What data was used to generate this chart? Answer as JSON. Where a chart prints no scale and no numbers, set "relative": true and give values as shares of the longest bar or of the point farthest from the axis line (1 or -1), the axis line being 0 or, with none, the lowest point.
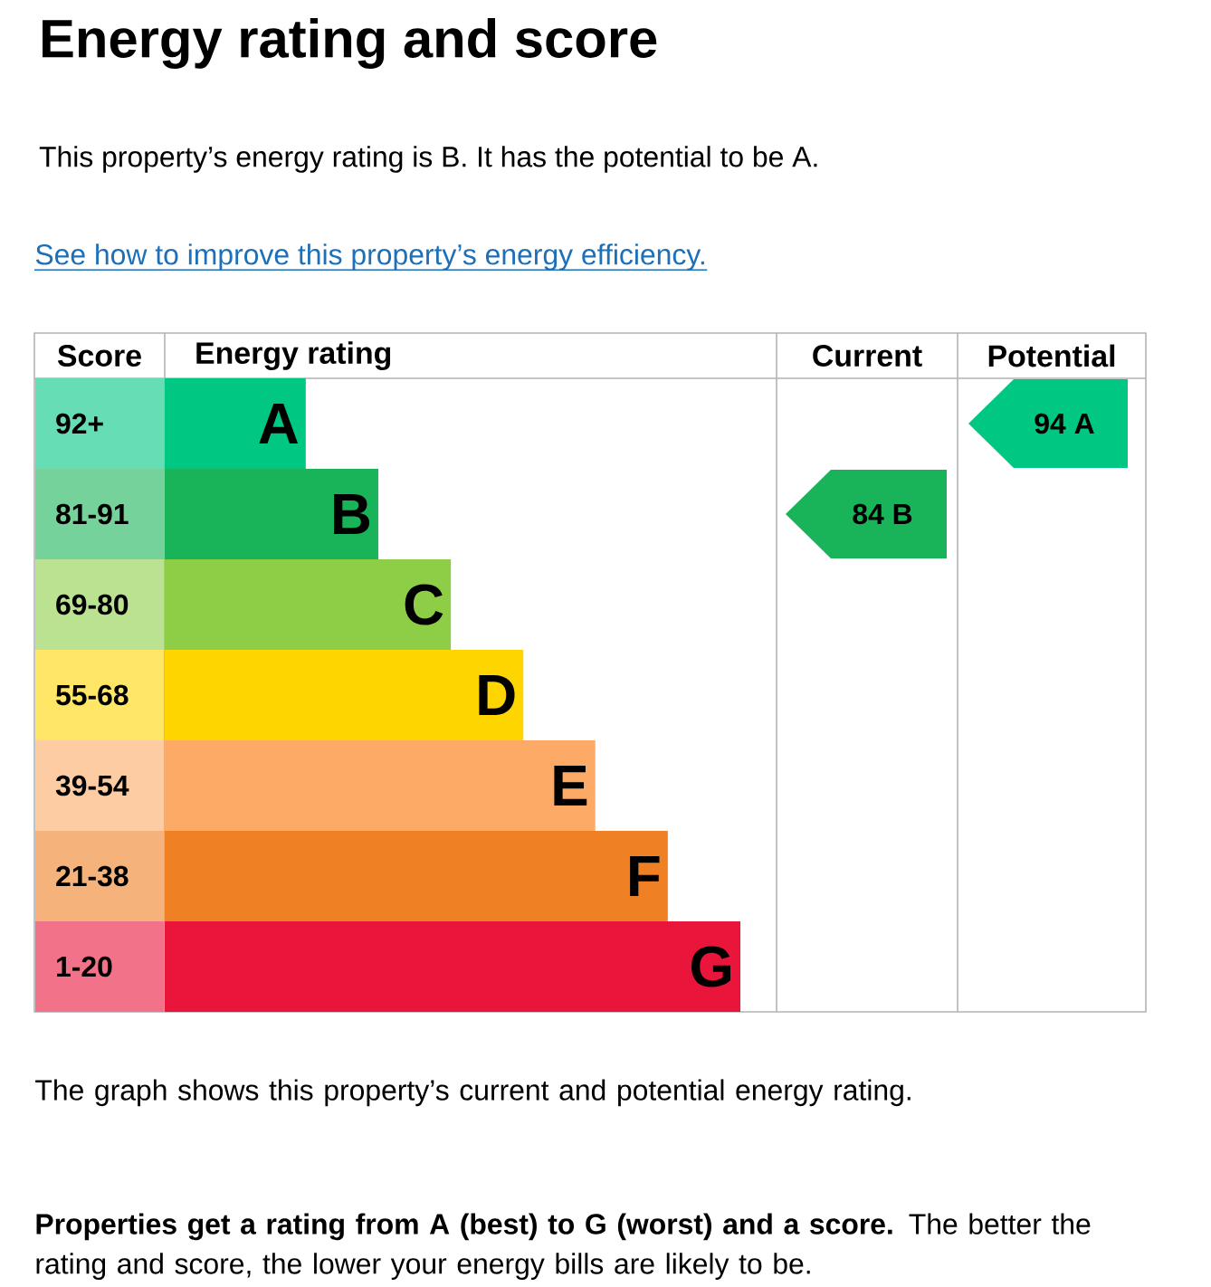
{
  "chart_data": {
    "type": "bar",
    "orientation": "horizontal",
    "relative": true,
    "title": "Energy rating and score",
    "subtitle": "This property’s energy rating is B. It has the potential to be A.",
    "categories": [
      "A",
      "B",
      "C",
      "D",
      "E",
      "F",
      "G"
    ],
    "values": [
      0.245,
      0.371,
      0.497,
      0.623,
      0.748,
      0.874,
      1
    ],
    "colors": [
      "#00c781",
      "#19b459",
      "#8dce46",
      "#ffd500",
      "#fcaa65",
      "#ef8023",
      "#e9153b"
    ],
    "annotations": [
      "See how to improve this property’s energy efficiency.",
      "Score",
      "Energy rating",
      "Current",
      "Potential",
      "92+",
      "81-91",
      "69-80",
      "55-68",
      "39-54",
      "21-38",
      "1-20",
      "84 B",
      "94 A",
      "The graph shows this property’s current and potential energy rating.",
      "**Properties get a rating from A (best) to G (worst) and a score.** The better the rating and score, the lower your energy bills are likely to be."
    ]
  }
}
